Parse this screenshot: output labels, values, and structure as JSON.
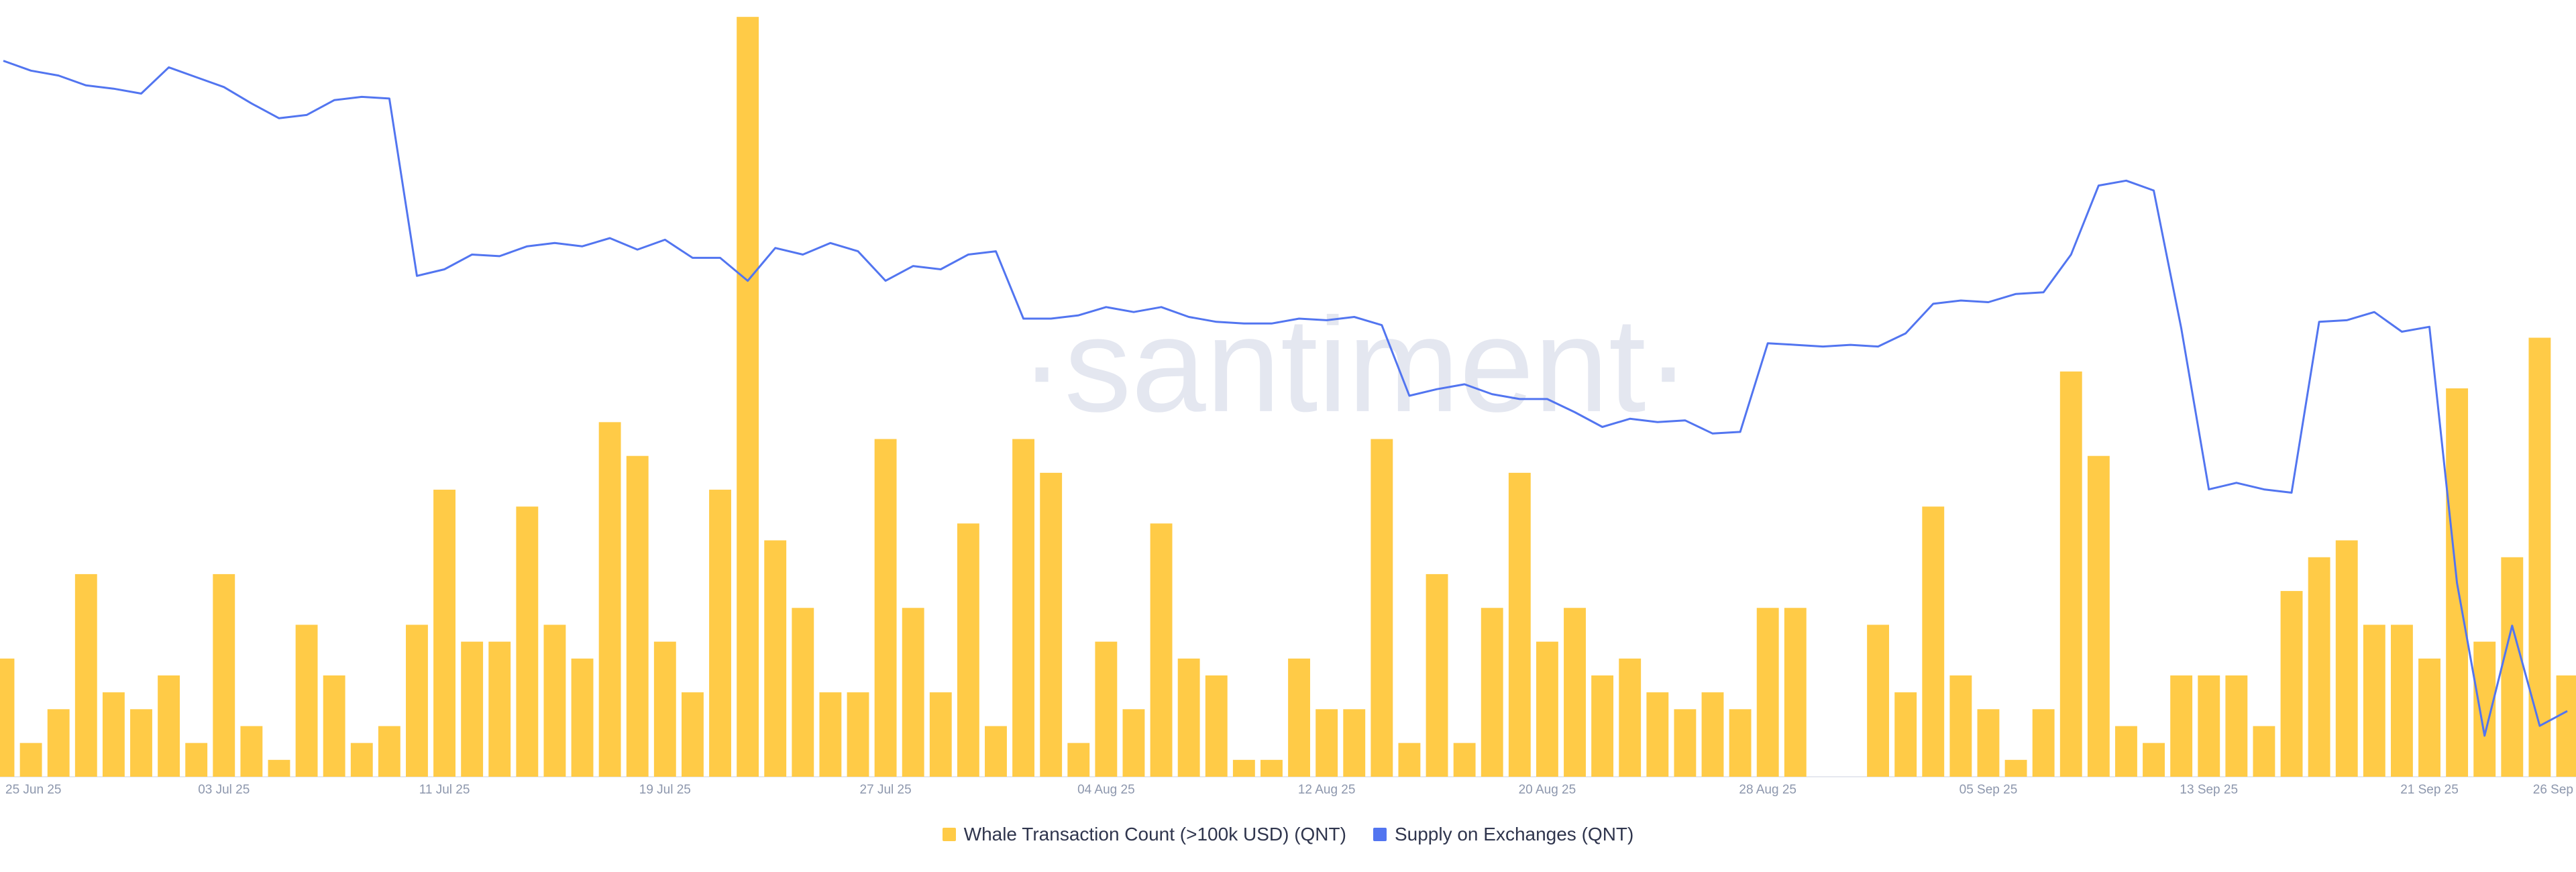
{
  "chart_data": {
    "type": "combo",
    "watermark": "·santiment·",
    "categories": [
      "25 Jun 25",
      null,
      null,
      null,
      null,
      null,
      null,
      null,
      "03 Jul 25",
      null,
      null,
      null,
      null,
      null,
      null,
      null,
      "11 Jul 25",
      null,
      null,
      null,
      null,
      null,
      null,
      null,
      "19 Jul 25",
      null,
      null,
      null,
      null,
      null,
      null,
      null,
      "27 Jul 25",
      null,
      null,
      null,
      null,
      null,
      null,
      null,
      "04 Aug 25",
      null,
      null,
      null,
      null,
      null,
      null,
      null,
      "12 Aug 25",
      null,
      null,
      null,
      null,
      null,
      null,
      null,
      "20 Aug 25",
      null,
      null,
      null,
      null,
      null,
      null,
      null,
      "28 Aug 25",
      null,
      null,
      null,
      null,
      null,
      null,
      null,
      "05 Sep 25",
      null,
      null,
      null,
      null,
      null,
      null,
      null,
      "13 Sep 25",
      null,
      null,
      null,
      null,
      null,
      null,
      null,
      "21 Sep 25",
      null,
      null,
      null,
      null,
      "26 Sep"
    ],
    "ylim": [
      0,
      46
    ],
    "y2lim": [
      27,
      500
    ],
    "series": [
      {
        "name": "Whale Transaction Count (>100k USD) (QNT)",
        "type": "bar",
        "color": "#ffcb47",
        "values": [
          7,
          2,
          4,
          12,
          5,
          4,
          6,
          2,
          12,
          3,
          1,
          9,
          6,
          2,
          3,
          9,
          17,
          8,
          8,
          16,
          9,
          7,
          21,
          19,
          8,
          5,
          17,
          45,
          14,
          10,
          5,
          5,
          20,
          10,
          5,
          15,
          3,
          20,
          18,
          2,
          8,
          4,
          15,
          7,
          6,
          1,
          1,
          7,
          4,
          4,
          20,
          2,
          12,
          2,
          10,
          18,
          8,
          10,
          6,
          7,
          5,
          4,
          5,
          4,
          10,
          10,
          0,
          0,
          9,
          5,
          16,
          6,
          4,
          1,
          4,
          24,
          19,
          3,
          2,
          6,
          6,
          6,
          3,
          11,
          13,
          14,
          9,
          9,
          7,
          23,
          8,
          13,
          26,
          6
        ]
      },
      {
        "name": "Supply on Exchanges (QNT)",
        "type": "line",
        "axis": "y2",
        "color": "#5275f0",
        "values": [
          463,
          457,
          454,
          448,
          446,
          443,
          459,
          453,
          447,
          437,
          428,
          430,
          439,
          441,
          440,
          332,
          336,
          345,
          344,
          350,
          352,
          350,
          355,
          348,
          354,
          343,
          343,
          329,
          349,
          345,
          352,
          347,
          329,
          338,
          336,
          345,
          347,
          306,
          306,
          308,
          313,
          310,
          313,
          307,
          304,
          303,
          303,
          306,
          305,
          307,
          302,
          259,
          263,
          266,
          260,
          257,
          257,
          249,
          240,
          245,
          243,
          244,
          236,
          237,
          291,
          290,
          289,
          290,
          289,
          297,
          315,
          317,
          316,
          321,
          322,
          345,
          387,
          390,
          384,
          300,
          202,
          206,
          202,
          200,
          304,
          305,
          310,
          298,
          301,
          145,
          52,
          119,
          58,
          67
        ]
      }
    ]
  }
}
